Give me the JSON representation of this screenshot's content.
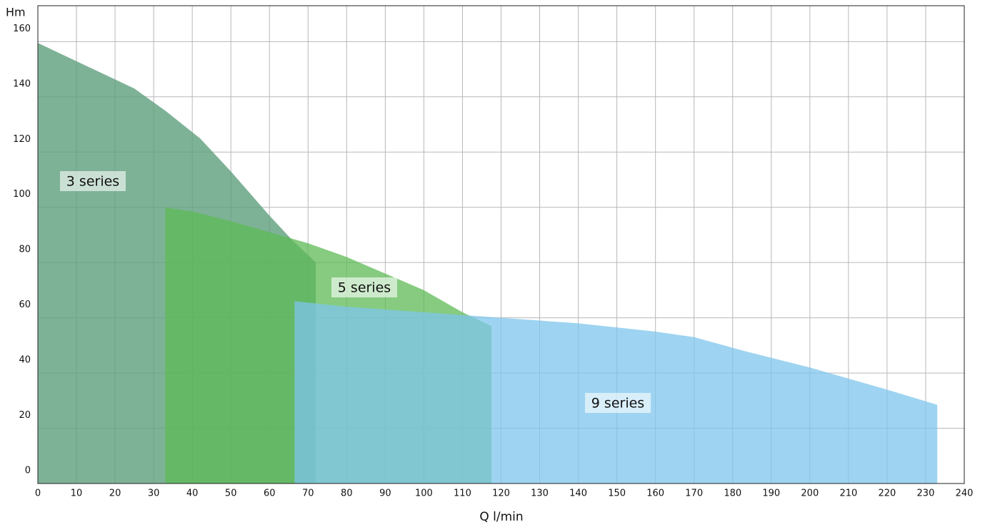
{
  "chart_data": {
    "type": "area",
    "y_label": "Hm",
    "x_label": "Q l/min",
    "xlim": [
      0,
      240
    ],
    "ylim": [
      0,
      173
    ],
    "xticks": [
      0,
      10,
      20,
      30,
      40,
      50,
      60,
      70,
      80,
      90,
      100,
      110,
      120,
      130,
      140,
      150,
      160,
      170,
      180,
      190,
      200,
      210,
      220,
      230,
      240
    ],
    "yticks": [
      0,
      20,
      40,
      60,
      80,
      100,
      120,
      140,
      160
    ],
    "grid": true,
    "series": [
      {
        "name": "3 series",
        "color": "#5e9f7d",
        "x": [
          0,
          25,
          33,
          42,
          50,
          60,
          66,
          72
        ],
        "values": [
          159.5,
          143,
          135,
          125,
          113,
          97,
          88,
          80
        ]
      },
      {
        "name": "5 series",
        "color": "#5dba55",
        "x": [
          33,
          40,
          50,
          60,
          70,
          80,
          90,
          100,
          110,
          117.5
        ],
        "values": [
          100,
          98.5,
          95,
          91,
          87,
          82,
          76,
          70,
          62,
          57
        ]
      },
      {
        "name": "9 series",
        "color": "#7ec6ec",
        "x": [
          66.5,
          80,
          100,
          120,
          140,
          160,
          170,
          183,
          200,
          220,
          233
        ],
        "values": [
          66,
          64,
          62,
          60,
          58,
          55,
          53,
          48,
          42,
          34,
          28.5
        ]
      }
    ]
  }
}
